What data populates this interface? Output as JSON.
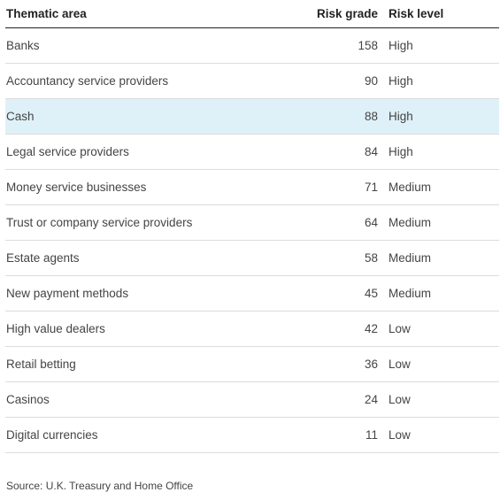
{
  "table": {
    "headers": [
      "Thematic area",
      "Risk grade",
      "Risk level"
    ],
    "highlight_color": "#dff1f8",
    "rows": [
      {
        "area": "Banks",
        "grade": "158",
        "level": "High",
        "highlighted": false
      },
      {
        "area": "Accountancy service providers",
        "grade": "90",
        "level": "High",
        "highlighted": false
      },
      {
        "area": "Cash",
        "grade": "88",
        "level": "High",
        "highlighted": true
      },
      {
        "area": "Legal service providers",
        "grade": "84",
        "level": "High",
        "highlighted": false
      },
      {
        "area": "Money service businesses",
        "grade": "71",
        "level": "Medium",
        "highlighted": false
      },
      {
        "area": "Trust or company service providers",
        "grade": "64",
        "level": "Medium",
        "highlighted": false
      },
      {
        "area": "Estate agents",
        "grade": "58",
        "level": "Medium",
        "highlighted": false
      },
      {
        "area": "New payment methods",
        "grade": "45",
        "level": "Medium",
        "highlighted": false
      },
      {
        "area": "High value dealers",
        "grade": "42",
        "level": "Low",
        "highlighted": false
      },
      {
        "area": "Retail betting",
        "grade": "36",
        "level": "Low",
        "highlighted": false
      },
      {
        "area": "Casinos",
        "grade": "24",
        "level": "Low",
        "highlighted": false
      },
      {
        "area": "Digital currencies",
        "grade": "11",
        "level": "Low",
        "highlighted": false
      }
    ]
  },
  "source": "Source: U.K. Treasury and Home Office"
}
